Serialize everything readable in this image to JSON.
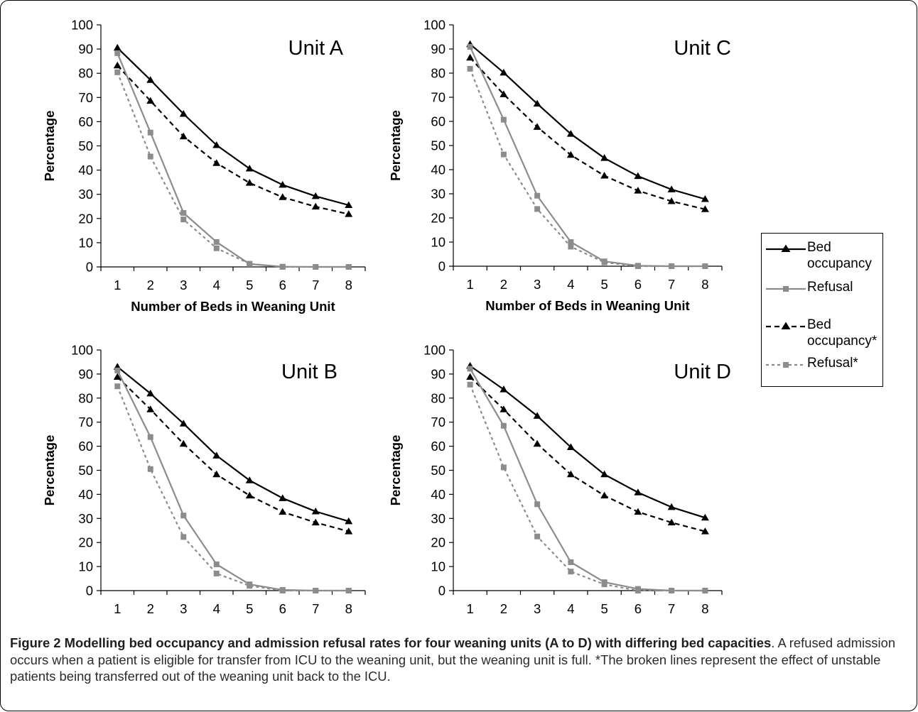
{
  "chart_data": [
    {
      "type": "line",
      "title": "Unit A",
      "xlabel": "Number of Beds in Weaning Unit",
      "ylabel": "Percentage",
      "x": [
        1,
        2,
        3,
        4,
        5,
        6,
        7,
        8
      ],
      "ylim": [
        0,
        100
      ],
      "yticks": [
        0,
        10,
        20,
        30,
        40,
        50,
        60,
        70,
        80,
        90,
        100
      ],
      "grid": false,
      "series": [
        {
          "name": "Bed occupancy",
          "values": [
            90.5,
            77.2,
            63.2,
            50.3,
            40.6,
            33.9,
            29.2,
            25.5
          ]
        },
        {
          "name": "Refusal",
          "values": [
            88.3,
            55.5,
            22.3,
            10.3,
            1.2,
            0.1,
            0,
            0
          ]
        },
        {
          "name": "Bed occupancy*",
          "values": [
            83.2,
            68.6,
            53.9,
            42.9,
            34.7,
            28.8,
            24.9,
            21.8
          ]
        },
        {
          "name": "Refusal*",
          "values": [
            80.4,
            45.6,
            19.6,
            7.7,
            1.3,
            0,
            0,
            0
          ]
        }
      ]
    },
    {
      "type": "line",
      "title": "Unit C",
      "xlabel": "Number of Beds in Weaning Unit",
      "ylabel": "Percentage",
      "x": [
        1,
        2,
        3,
        4,
        5,
        6,
        7,
        8
      ],
      "ylim": [
        0,
        100
      ],
      "yticks": [
        0,
        10,
        20,
        30,
        40,
        50,
        60,
        70,
        80,
        90,
        100
      ],
      "grid": false,
      "series": [
        {
          "name": "Bed occupancy",
          "values": [
            92.0,
            80.2,
            67.3,
            54.8,
            44.8,
            37.3,
            31.8,
            27.8
          ]
        },
        {
          "name": "Refusal",
          "values": [
            90.9,
            60.7,
            29.2,
            10.0,
            2.0,
            0.2,
            0,
            0
          ]
        },
        {
          "name": "Bed occupancy*",
          "values": [
            86.4,
            71.2,
            57.7,
            46.1,
            37.5,
            31.3,
            26.9,
            23.6
          ]
        },
        {
          "name": "Refusal*",
          "values": [
            81.8,
            46.3,
            23.7,
            8.1,
            1.6,
            0,
            0,
            0
          ]
        }
      ]
    },
    {
      "type": "line",
      "title": "Unit B",
      "xlabel": "Number of Beds in Weaning Unit",
      "ylabel": "Percentage",
      "x": [
        1,
        2,
        3,
        4,
        5,
        6,
        7,
        8
      ],
      "ylim": [
        0,
        100
      ],
      "yticks": [
        0,
        10,
        20,
        30,
        40,
        50,
        60,
        70,
        80,
        90,
        100
      ],
      "grid": false,
      "series": [
        {
          "name": "Bed occupancy",
          "values": [
            93.0,
            81.9,
            69.4,
            56.1,
            45.8,
            38.4,
            32.9,
            28.8
          ]
        },
        {
          "name": "Refusal",
          "values": [
            91.5,
            63.8,
            31.2,
            10.9,
            2.6,
            0.3,
            0,
            0
          ]
        },
        {
          "name": "Bed occupancy*",
          "values": [
            88.8,
            75.3,
            61.0,
            48.3,
            39.5,
            32.7,
            28.3,
            24.6
          ]
        },
        {
          "name": "Refusal*",
          "values": [
            84.9,
            50.5,
            22.3,
            7.1,
            2.0,
            0,
            0,
            0
          ]
        }
      ]
    },
    {
      "type": "line",
      "title": "Unit D",
      "xlabel": "Number of Beds in Weaning Unit",
      "ylabel": "Percentage",
      "x": [
        1,
        2,
        3,
        4,
        5,
        6,
        7,
        8
      ],
      "ylim": [
        0,
        100
      ],
      "yticks": [
        0,
        10,
        20,
        30,
        40,
        50,
        60,
        70,
        80,
        90,
        100
      ],
      "grid": false,
      "series": [
        {
          "name": "Bed occupancy",
          "values": [
            93.4,
            83.6,
            72.6,
            59.6,
            48.3,
            40.8,
            34.7,
            30.3
          ]
        },
        {
          "name": "Refusal",
          "values": [
            92.2,
            68.5,
            35.9,
            11.8,
            3.5,
            0.7,
            0,
            0
          ]
        },
        {
          "name": "Bed occupancy*",
          "values": [
            88.8,
            75.3,
            61.0,
            48.3,
            39.5,
            32.7,
            28.3,
            24.6
          ]
        },
        {
          "name": "Refusal*",
          "values": [
            85.6,
            51.2,
            22.5,
            7.9,
            2.6,
            0,
            0,
            0
          ]
        }
      ]
    }
  ],
  "legend": {
    "placement": "right",
    "items": [
      {
        "label": "Bed occupancy",
        "color": "#000000",
        "dash": false,
        "marker": "triangle"
      },
      {
        "label": "Refusal",
        "color": "#8c8c8c",
        "dash": false,
        "marker": "square"
      },
      {
        "label": "Bed occupancy*",
        "color": "#000000",
        "dash": true,
        "marker": "triangle"
      },
      {
        "label": "Refusal*",
        "color": "#8c8c8c",
        "dash": true,
        "marker": "square"
      }
    ]
  },
  "caption": {
    "title": "Figure 2 Modelling bed occupancy and admission refusal rates for four weaning units (A to D) with differing bed capacities",
    "text": ". A refused admission occurs when a patient is eligible for transfer from ICU to the weaning unit, but the weaning unit is full. *The broken lines represent the effect of unstable patients being transferred out of the weaning unit back to the ICU."
  },
  "colors": {
    "bed_occupancy": "#000000",
    "refusal": "#8c8c8c",
    "axis": "#000000"
  }
}
